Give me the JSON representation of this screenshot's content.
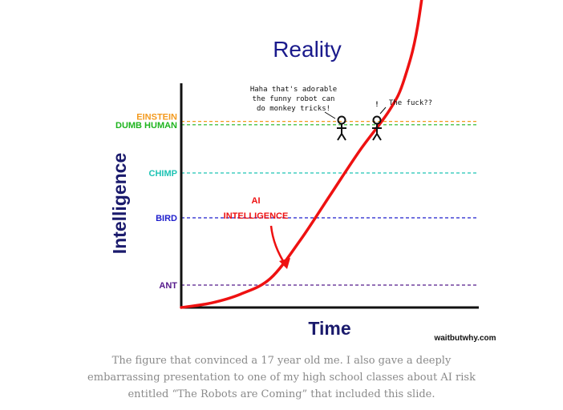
{
  "chart_data": {
    "type": "line",
    "title": "Reality",
    "xlabel": "Time",
    "ylabel": "Intelligence",
    "grid": false,
    "series": [
      {
        "name": "AI INTELLIGENCE",
        "color": "#ee1111",
        "points": [
          [
            0,
            0
          ],
          [
            0.1,
            0.02
          ],
          [
            0.2,
            0.06
          ],
          [
            0.3,
            0.13
          ],
          [
            0.4,
            0.3
          ],
          [
            0.5,
            0.5
          ],
          [
            0.6,
            0.7
          ],
          [
            0.7,
            0.88
          ],
          [
            0.75,
            1.02
          ],
          [
            0.8,
            1.3
          ],
          [
            0.85,
            1.9
          ],
          [
            0.88,
            2.7
          ]
        ]
      }
    ],
    "levels": [
      {
        "label": "EINSTEIN",
        "value": 0.83,
        "color": "#f39a1e"
      },
      {
        "label": "DUMB HUMAN",
        "value": 0.815,
        "color": "#1eb41e"
      },
      {
        "label": "CHIMP",
        "value": 0.6,
        "color": "#1ec3b4"
      },
      {
        "label": "BIRD",
        "value": 0.4,
        "color": "#1e1ecc"
      },
      {
        "label": "ANT",
        "value": 0.1,
        "color": "#551a8b"
      }
    ],
    "annotations": {
      "ai_label_line1": "AI",
      "ai_label_line2": "INTELLIGENCE",
      "human_speech": [
        "Haha that's adorable",
        "the funny robot can",
        "do monkey tricks!"
      ],
      "second_speech": "The fuck??",
      "exclaim": "!"
    },
    "credit": "waitbutwhy.com"
  },
  "caption": "The figure that convinced a 17 year old me. I also gave a deeply embarrassing presentation to one of my high school classes about AI risk entitled “The Robots are Coming” that included this slide."
}
